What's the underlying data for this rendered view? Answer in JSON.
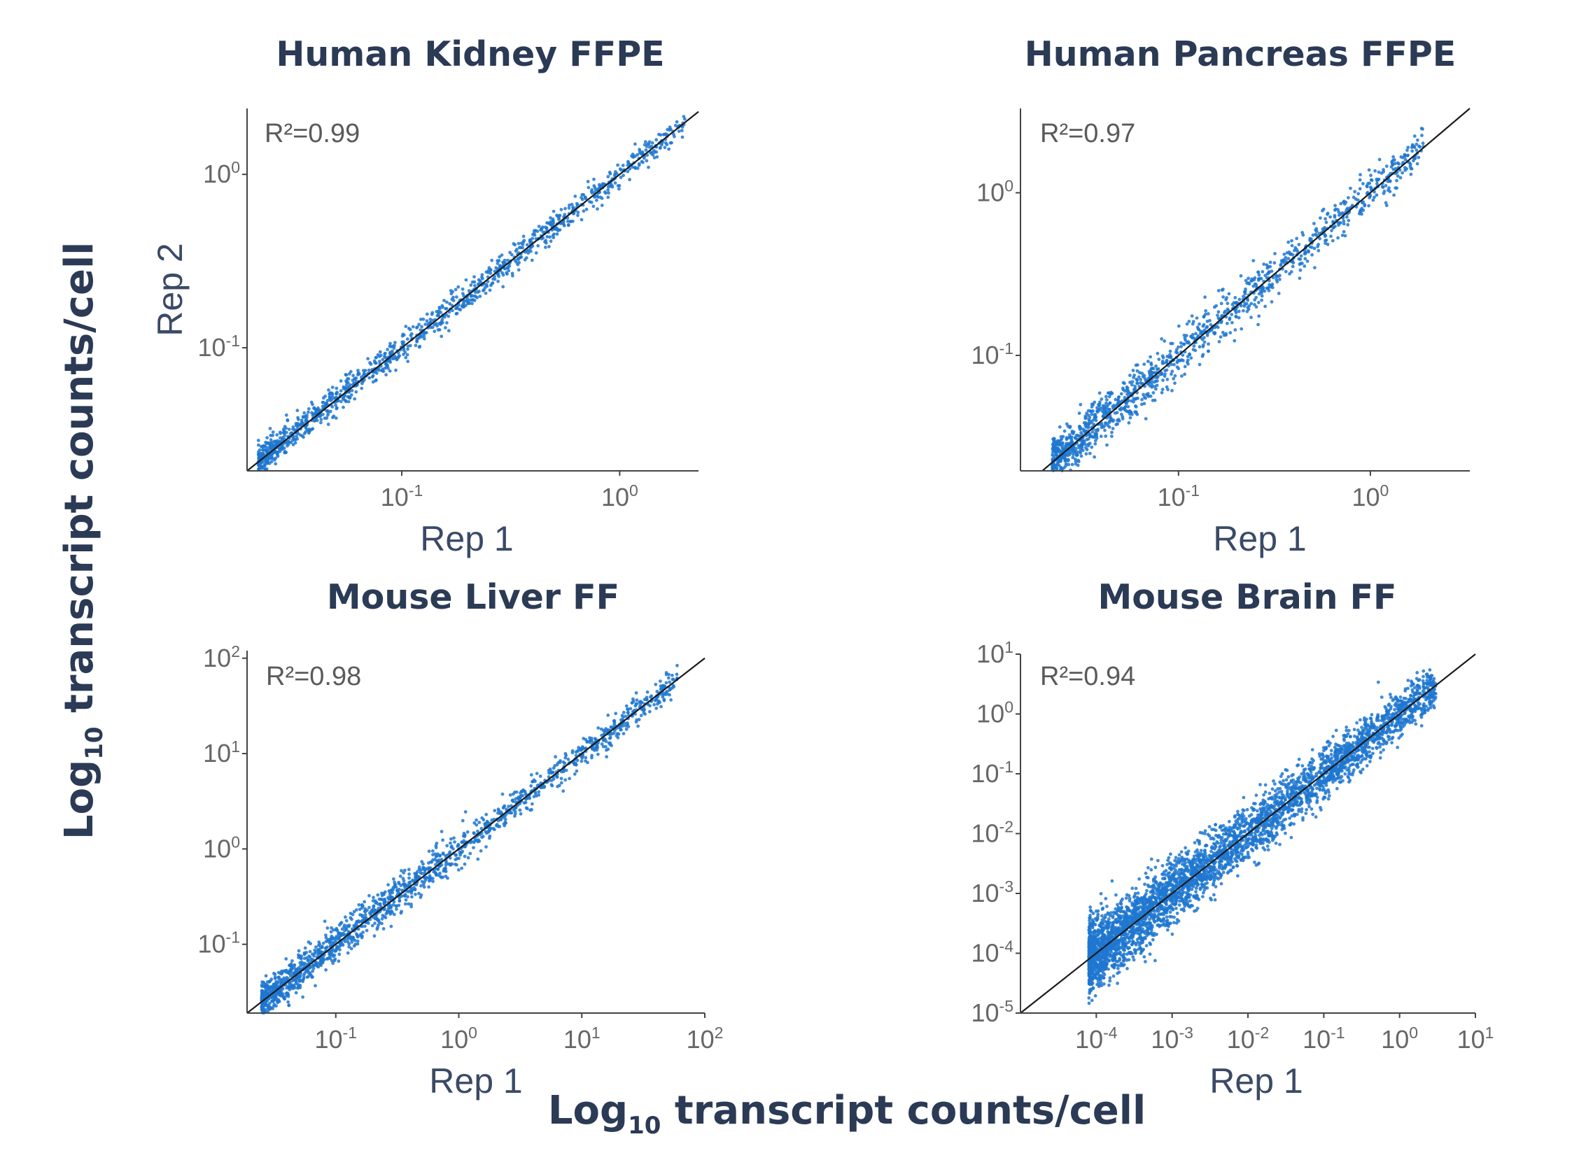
{
  "global": {
    "xlabel": "Log10 transcript counts/cell",
    "ylabel": "Log10 transcript counts/cell",
    "label_parts": {
      "main": "Log",
      "sub": "10",
      "rest": " transcript counts/cell"
    }
  },
  "chart_data": [
    {
      "type": "scatter",
      "title": "Human Kidney FFPE",
      "annotation": "R²=0.99",
      "xlabel": "Rep 1",
      "ylabel": "Rep 2",
      "log_scale": true,
      "xlim": [
        0.0195,
        2.3
      ],
      "ylim": [
        0.0195,
        2.4
      ],
      "x_ticks": [
        {
          "value": 0.1,
          "label": "10",
          "exp": "-1"
        },
        {
          "value": 1,
          "label": "10",
          "exp": "0"
        }
      ],
      "y_ticks": [
        {
          "value": 0.1,
          "label": "10",
          "exp": "-1"
        },
        {
          "value": 1,
          "label": "10",
          "exp": "0"
        }
      ],
      "series": [
        {
          "color": "#1f77d0",
          "x_range": [
            0.022,
            2.0
          ],
          "spread_decades": 0.035,
          "n_points": 1200
        }
      ],
      "fit_line": "y = x",
      "grid": false
    },
    {
      "type": "scatter",
      "title": "Human Pancreas FFPE",
      "annotation": "R²=0.97",
      "xlabel": "Rep 1",
      "ylabel": "",
      "log_scale": true,
      "xlim": [
        0.015,
        3.3
      ],
      "ylim": [
        0.0195,
        3.3
      ],
      "x_ticks": [
        {
          "value": 0.1,
          "label": "10",
          "exp": "-1"
        },
        {
          "value": 1,
          "label": "10",
          "exp": "0"
        }
      ],
      "y_ticks": [
        {
          "value": 0.1,
          "label": "10",
          "exp": "-1"
        },
        {
          "value": 1,
          "label": "10",
          "exp": "0"
        }
      ],
      "series": [
        {
          "color": "#1f77d0",
          "x_range": [
            0.022,
            1.9
          ],
          "spread_decades": 0.06,
          "n_points": 1300
        }
      ],
      "fit_line": "y = x",
      "grid": false
    },
    {
      "type": "scatter",
      "title": "Mouse Liver FF",
      "annotation": "R²=0.98",
      "xlabel": "Rep 1",
      "ylabel": "",
      "log_scale": true,
      "xlim": [
        0.019,
        100
      ],
      "ylim": [
        0.019,
        120
      ],
      "x_ticks": [
        {
          "value": 0.1,
          "label": "10",
          "exp": "-1"
        },
        {
          "value": 1,
          "label": "10",
          "exp": "0"
        },
        {
          "value": 10,
          "label": "10",
          "exp": "1"
        },
        {
          "value": 100,
          "label": "10",
          "exp": "2"
        }
      ],
      "y_ticks": [
        {
          "value": 0.1,
          "label": "10",
          "exp": "-1"
        },
        {
          "value": 1,
          "label": "10",
          "exp": "0"
        },
        {
          "value": 10,
          "label": "10",
          "exp": "1"
        },
        {
          "value": 100,
          "label": "10",
          "exp": "2"
        }
      ],
      "series": [
        {
          "color": "#1f77d0",
          "x_range": [
            0.025,
            60
          ],
          "spread_decades": 0.07,
          "n_points": 1600
        }
      ],
      "fit_line": "y = x",
      "grid": false
    },
    {
      "type": "scatter",
      "title": "Mouse Brain FF",
      "annotation": "R²=0.94",
      "xlabel": "Rep 1",
      "ylabel": "",
      "log_scale": true,
      "xlim": [
        1e-05,
        10
      ],
      "ylim": [
        1e-05,
        10
      ],
      "x_ticks": [
        {
          "value": 0.0001,
          "label": "10",
          "exp": "-4"
        },
        {
          "value": 0.001,
          "label": "10",
          "exp": "-3"
        },
        {
          "value": 0.01,
          "label": "10",
          "exp": "-2"
        },
        {
          "value": 0.1,
          "label": "10",
          "exp": "-1"
        },
        {
          "value": 1,
          "label": "10",
          "exp": "0"
        },
        {
          "value": 10,
          "label": "10",
          "exp": "1"
        }
      ],
      "y_ticks": [
        {
          "value": 1e-05,
          "label": "10",
          "exp": "-5"
        },
        {
          "value": 0.0001,
          "label": "10",
          "exp": "-4"
        },
        {
          "value": 0.001,
          "label": "10",
          "exp": "-3"
        },
        {
          "value": 0.01,
          "label": "10",
          "exp": "-2"
        },
        {
          "value": 0.1,
          "label": "10",
          "exp": "-1"
        },
        {
          "value": 1,
          "label": "10",
          "exp": "0"
        },
        {
          "value": 10,
          "label": "10",
          "exp": "1"
        }
      ],
      "series": [
        {
          "color": "#1f77d0",
          "x_range": [
            8e-05,
            3
          ],
          "spread_decades": 0.17,
          "n_points": 4000
        }
      ],
      "fit_line": "y = x",
      "grid": false
    }
  ]
}
